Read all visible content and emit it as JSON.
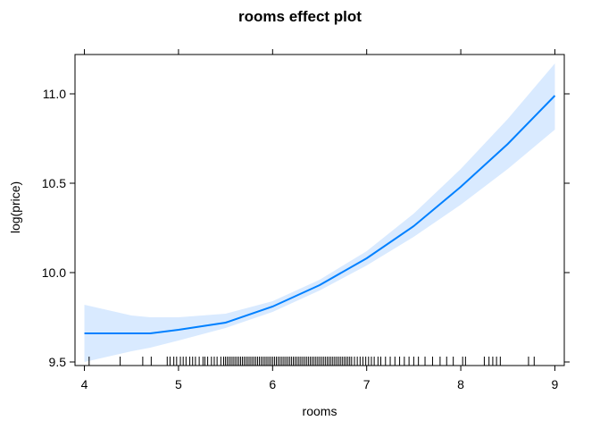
{
  "chart_data": {
    "type": "line",
    "title": "rooms effect plot",
    "xlabel": "rooms",
    "ylabel": "log(price)",
    "xlim": [
      3.9,
      9.1
    ],
    "ylim": [
      9.48,
      11.22
    ],
    "x_ticks": [
      4,
      5,
      6,
      7,
      8,
      9
    ],
    "y_ticks": [
      9.5,
      10.0,
      10.5,
      11.0
    ],
    "x_tick_labels": [
      "4",
      "5",
      "6",
      "7",
      "8",
      "9"
    ],
    "y_tick_labels": [
      "9.5",
      "10.0",
      "10.5",
      "11.0"
    ],
    "grid": false,
    "legend": "none",
    "colors": {
      "line": "#0080ff",
      "band": "#d9eaff",
      "rug": "#000000",
      "frame": "#000000"
    },
    "series": [
      {
        "x": [
          4.0,
          4.5,
          4.7,
          5.0,
          5.5,
          6.0,
          6.5,
          7.0,
          7.5,
          8.0,
          8.5,
          9.0
        ],
        "values": [
          9.66,
          9.66,
          9.66,
          9.68,
          9.72,
          9.81,
          9.93,
          10.08,
          10.26,
          10.48,
          10.72,
          10.99
        ],
        "lower": [
          9.5,
          9.56,
          9.58,
          9.62,
          9.69,
          9.78,
          9.9,
          10.04,
          10.2,
          10.38,
          10.58,
          10.8
        ],
        "upper": [
          9.82,
          9.76,
          9.75,
          9.75,
          9.77,
          9.84,
          9.96,
          10.12,
          10.33,
          10.58,
          10.86,
          11.17
        ]
      }
    ],
    "rug": [
      4.05,
      4.38,
      4.62,
      4.71,
      4.88,
      4.91,
      4.95,
      4.98,
      5.02,
      5.05,
      5.08,
      5.12,
      5.15,
      5.18,
      5.22,
      5.26,
      5.28,
      5.31,
      5.35,
      5.38,
      5.41,
      5.45,
      5.48,
      5.5,
      5.52,
      5.54,
      5.56,
      5.58,
      5.6,
      5.62,
      5.64,
      5.66,
      5.68,
      5.7,
      5.72,
      5.74,
      5.76,
      5.78,
      5.8,
      5.82,
      5.84,
      5.86,
      5.88,
      5.9,
      5.92,
      5.94,
      5.96,
      5.98,
      6.0,
      6.02,
      6.04,
      6.06,
      6.08,
      6.1,
      6.12,
      6.14,
      6.16,
      6.18,
      6.2,
      6.22,
      6.24,
      6.26,
      6.28,
      6.3,
      6.32,
      6.34,
      6.36,
      6.38,
      6.4,
      6.42,
      6.44,
      6.46,
      6.48,
      6.5,
      6.52,
      6.54,
      6.56,
      6.58,
      6.6,
      6.62,
      6.64,
      6.66,
      6.68,
      6.7,
      6.72,
      6.74,
      6.76,
      6.78,
      6.8,
      6.82,
      6.84,
      6.87,
      6.9,
      6.93,
      6.96,
      6.99,
      7.02,
      7.05,
      7.08,
      7.12,
      7.15,
      7.2,
      7.25,
      7.3,
      7.35,
      7.4,
      7.45,
      7.5,
      7.55,
      7.62,
      7.7,
      7.78,
      7.85,
      7.92,
      8.02,
      8.05,
      8.25,
      8.3,
      8.34,
      8.38,
      8.42,
      8.72,
      8.78
    ]
  }
}
